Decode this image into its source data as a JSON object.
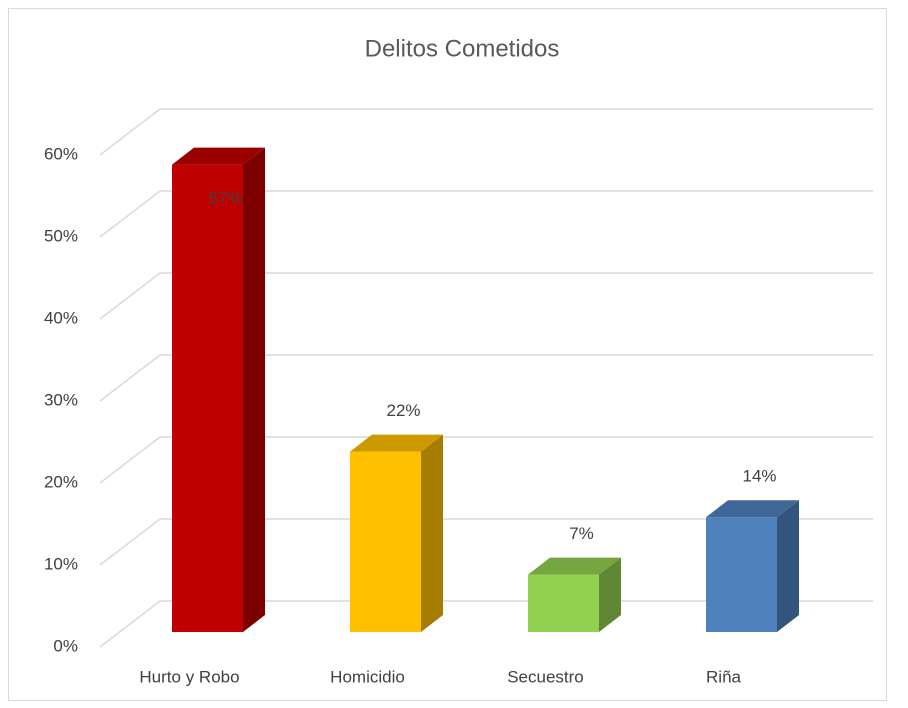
{
  "chart_data": {
    "type": "bar3d",
    "title": "Delitos Cometidos",
    "categories": [
      "Hurto y Robo",
      "Homicidio",
      "Secuestro",
      "Riña"
    ],
    "values": [
      57,
      22,
      7,
      14
    ],
    "value_labels": [
      "57%",
      "22%",
      "7%",
      "14%"
    ],
    "colors": [
      "#c00000",
      "#ffc000",
      "#92d050",
      "#4f81bd"
    ],
    "ylim": [
      0,
      60
    ],
    "yticks": [
      {
        "value": 0,
        "label": "0%"
      },
      {
        "value": 10,
        "label": "10%"
      },
      {
        "value": 20,
        "label": "20%"
      },
      {
        "value": 30,
        "label": "30%"
      },
      {
        "value": 40,
        "label": "40%"
      },
      {
        "value": 50,
        "label": "50%"
      },
      {
        "value": 60,
        "label": "60%"
      }
    ],
    "grid": true
  }
}
